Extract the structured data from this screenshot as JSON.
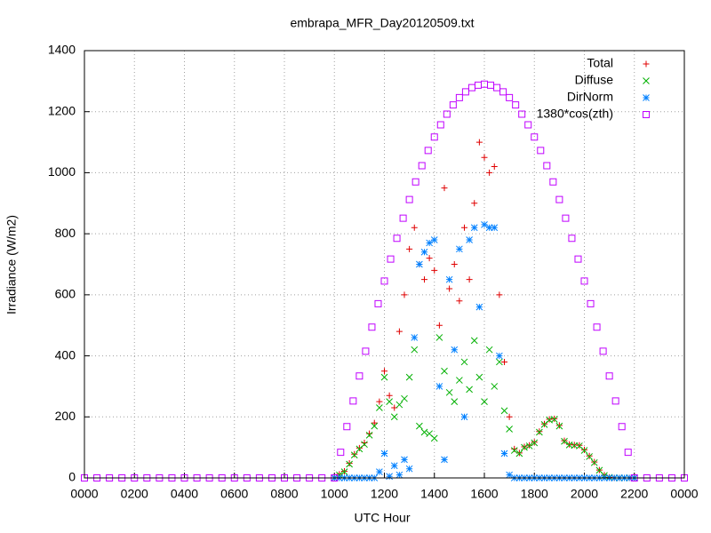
{
  "chart_data": {
    "type": "scatter",
    "title": "embrapa_MFR_Day20120509.txt",
    "x_label": "UTC Hour",
    "y_label": "Irradiance (W/m2)",
    "xlim": [
      0,
      24
    ],
    "ylim": [
      0,
      1400
    ],
    "xticks": [
      {
        "value": 0,
        "label": "0000"
      },
      {
        "value": 2,
        "label": "0200"
      },
      {
        "value": 4,
        "label": "0400"
      },
      {
        "value": 6,
        "label": "0600"
      },
      {
        "value": 8,
        "label": "0800"
      },
      {
        "value": 10,
        "label": "1000"
      },
      {
        "value": 12,
        "label": "1200"
      },
      {
        "value": 14,
        "label": "1400"
      },
      {
        "value": 16,
        "label": "1600"
      },
      {
        "value": 18,
        "label": "1800"
      },
      {
        "value": 20,
        "label": "2000"
      },
      {
        "value": 22,
        "label": "2200"
      },
      {
        "value": 24,
        "label": "0000"
      }
    ],
    "yticks": [
      0,
      200,
      400,
      600,
      800,
      1000,
      1200,
      1400
    ],
    "grid": true,
    "legend": "top-right",
    "series": [
      {
        "name": "Total",
        "color": "#e00000",
        "marker": "plus",
        "x": [
          10.0,
          10.2,
          10.4,
          10.6,
          10.8,
          11.0,
          11.2,
          11.4,
          11.6,
          11.8,
          12.0,
          12.2,
          12.4,
          12.6,
          12.8,
          13.0,
          13.2,
          13.4,
          13.6,
          13.8,
          14.0,
          14.2,
          14.4,
          14.6,
          14.8,
          15.0,
          15.2,
          15.4,
          15.6,
          15.8,
          16.0,
          16.2,
          16.4,
          16.6,
          16.8,
          17.0,
          17.2,
          17.4,
          17.6,
          17.8,
          18.0,
          18.2,
          18.4,
          18.6,
          18.8,
          19.0,
          19.2,
          19.4,
          19.6,
          19.8,
          20.0,
          20.2,
          20.4,
          20.6,
          20.8,
          21.0,
          21.2,
          21.4,
          21.6,
          21.8,
          22.0
        ],
        "values": [
          0,
          12,
          22,
          48,
          78,
          98,
          115,
          145,
          180,
          250,
          350,
          270,
          230,
          480,
          600,
          750,
          820,
          700,
          650,
          720,
          680,
          500,
          950,
          620,
          700,
          580,
          820,
          650,
          900,
          1100,
          1050,
          1000,
          1020,
          600,
          380,
          200,
          95,
          82,
          102,
          107,
          117,
          152,
          177,
          192,
          194,
          172,
          122,
          110,
          108,
          107,
          92,
          72,
          52,
          26,
          9,
          2,
          0,
          0,
          0,
          0,
          0
        ]
      },
      {
        "name": "Diffuse",
        "color": "#00b000",
        "marker": "cross",
        "x": [
          10.0,
          10.2,
          10.4,
          10.6,
          10.8,
          11.0,
          11.2,
          11.4,
          11.6,
          11.8,
          12.0,
          12.2,
          12.4,
          12.6,
          12.8,
          13.0,
          13.2,
          13.4,
          13.6,
          13.8,
          14.0,
          14.2,
          14.4,
          14.6,
          14.8,
          15.0,
          15.2,
          15.4,
          15.6,
          15.8,
          16.0,
          16.2,
          16.4,
          16.6,
          16.8,
          17.0,
          17.2,
          17.4,
          17.6,
          17.8,
          18.0,
          18.2,
          18.4,
          18.6,
          18.8,
          19.0,
          19.2,
          19.4,
          19.6,
          19.8,
          20.0,
          20.2,
          20.4,
          20.6,
          20.8,
          21.0,
          21.2,
          21.4,
          21.6,
          21.8,
          22.0
        ],
        "values": [
          0,
          10,
          20,
          45,
          75,
          95,
          110,
          140,
          170,
          230,
          330,
          250,
          200,
          240,
          260,
          330,
          420,
          170,
          150,
          145,
          130,
          460,
          350,
          280,
          250,
          320,
          380,
          290,
          450,
          330,
          250,
          420,
          300,
          380,
          220,
          160,
          90,
          80,
          100,
          105,
          115,
          150,
          175,
          190,
          192,
          170,
          120,
          108,
          106,
          105,
          90,
          70,
          50,
          25,
          8,
          2,
          0,
          0,
          0,
          0,
          0
        ]
      },
      {
        "name": "DirNorm",
        "color": "#0080ff",
        "marker": "star",
        "x": [
          10.0,
          10.2,
          10.4,
          10.6,
          10.8,
          11.0,
          11.2,
          11.4,
          11.6,
          11.8,
          12.0,
          12.2,
          12.4,
          12.6,
          12.8,
          13.0,
          13.2,
          13.4,
          13.6,
          13.8,
          14.0,
          14.2,
          14.4,
          14.6,
          14.8,
          15.0,
          15.2,
          15.4,
          15.6,
          15.8,
          16.0,
          16.2,
          16.4,
          16.6,
          16.8,
          17.0,
          17.2,
          17.4,
          17.6,
          17.8,
          18.0,
          18.2,
          18.4,
          18.6,
          18.8,
          19.0,
          19.2,
          19.4,
          19.6,
          19.8,
          20.0,
          20.2,
          20.4,
          20.6,
          20.8,
          21.0,
          21.2,
          21.4,
          21.6,
          21.8,
          22.0
        ],
        "values": [
          0,
          0,
          0,
          0,
          0,
          0,
          0,
          0,
          0,
          20,
          80,
          5,
          40,
          10,
          60,
          30,
          460,
          700,
          740,
          770,
          780,
          300,
          60,
          650,
          420,
          750,
          200,
          780,
          820,
          560,
          830,
          820,
          820,
          400,
          80,
          10,
          0,
          0,
          0,
          0,
          0,
          0,
          0,
          0,
          0,
          0,
          0,
          0,
          0,
          0,
          0,
          0,
          0,
          0,
          0,
          0,
          0,
          0,
          0,
          0,
          0
        ]
      },
      {
        "name": "1380*cos(zth)",
        "color": "#c000ff",
        "marker": "square",
        "x": [
          0,
          0.5,
          1,
          1.5,
          2,
          2.5,
          3,
          3.5,
          4,
          4.5,
          5,
          5.5,
          6,
          6.5,
          7,
          7.5,
          8,
          8.5,
          9,
          9.5,
          10,
          10.25,
          10.5,
          10.75,
          11,
          11.25,
          11.5,
          11.75,
          12,
          12.25,
          12.5,
          12.75,
          13,
          13.25,
          13.5,
          13.75,
          14,
          14.25,
          14.5,
          14.75,
          15,
          15.25,
          15.5,
          15.75,
          16,
          16.25,
          16.5,
          16.75,
          17,
          17.25,
          17.5,
          17.75,
          18,
          18.25,
          18.5,
          18.75,
          19,
          19.25,
          19.5,
          19.75,
          20,
          20.25,
          20.5,
          20.75,
          21,
          21.25,
          21.5,
          21.75,
          22,
          22.5,
          23,
          23.5,
          24
        ],
        "values": [
          0,
          0,
          0,
          0,
          0,
          0,
          0,
          0,
          0,
          0,
          0,
          0,
          0,
          0,
          0,
          0,
          0,
          0,
          0,
          0,
          0,
          84,
          168,
          252,
          334,
          415,
          494,
          571,
          645,
          717,
          785,
          851,
          912,
          970,
          1023,
          1073,
          1117,
          1157,
          1192,
          1222,
          1246,
          1265,
          1279,
          1287,
          1290,
          1287,
          1279,
          1265,
          1246,
          1222,
          1192,
          1157,
          1117,
          1073,
          1023,
          970,
          912,
          851,
          785,
          717,
          645,
          571,
          494,
          415,
          334,
          252,
          168,
          84,
          0,
          0,
          0,
          0,
          0
        ]
      }
    ]
  }
}
